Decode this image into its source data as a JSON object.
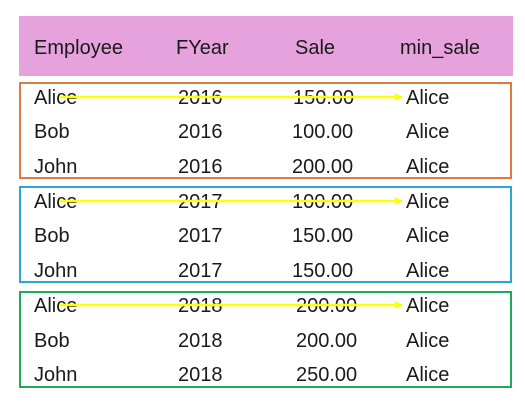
{
  "colors": {
    "header_bg": "#e5a2dd",
    "arrow": "#ffff00",
    "group_2016": "#e07a3f",
    "group_2017": "#2aa7d6",
    "group_2018": "#22a85a"
  },
  "table": {
    "headers": [
      "Employee",
      "FYear",
      "Sale",
      "min_sale"
    ],
    "groups": [
      {
        "year": "2016",
        "color_key": "group_2016",
        "rows": [
          [
            "Alice",
            "2016",
            "150.00",
            "Alice"
          ],
          [
            "Bob",
            "2016",
            "100.00",
            "Alice"
          ],
          [
            "John",
            "2016",
            "200.00",
            "Alice"
          ]
        ]
      },
      {
        "year": "2017",
        "color_key": "group_2017",
        "rows": [
          [
            "Alice",
            "2017",
            "100.00",
            "Alice"
          ],
          [
            "Bob",
            "2017",
            "150.00",
            "Alice"
          ],
          [
            "John",
            "2017",
            "150.00",
            "Alice"
          ]
        ]
      },
      {
        "year": "2018",
        "color_key": "group_2018",
        "rows": [
          [
            "Alice",
            "2018",
            "200.00",
            "Alice"
          ],
          [
            "Bob",
            "2018",
            "200.00",
            "Alice"
          ],
          [
            "John",
            "2018",
            "250.00",
            "Alice"
          ]
        ]
      }
    ]
  }
}
